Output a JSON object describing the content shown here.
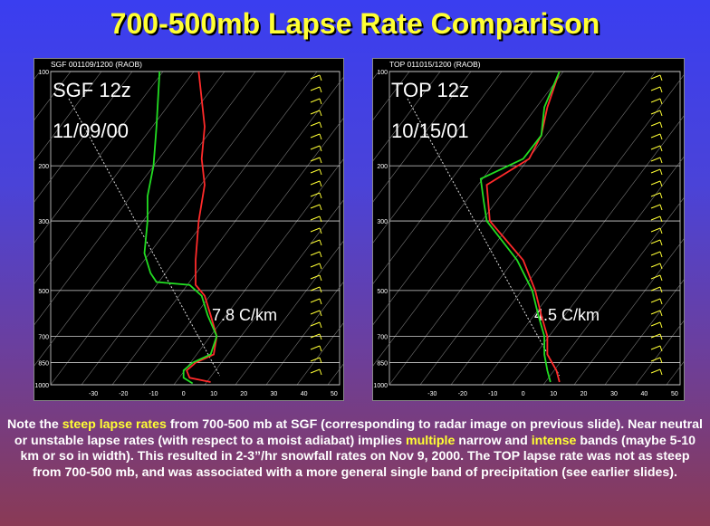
{
  "title": "700-500mb Lapse Rate Comparison",
  "colors": {
    "temperature": "#ff2a2a",
    "dewpoint": "#22dd22",
    "highlight": "#ffff33",
    "isobar": "#cfcfcf",
    "barb": "#ffff33"
  },
  "caption": {
    "p1": "Note the ",
    "h1": "steep lapse rates",
    "p2": " from 700-500 mb at SGF (corresponding to radar image on previous slide). Near neutral or unstable lapse rates (with respect to a moist adiabat) implies ",
    "h2": "multiple",
    "p3": " narrow and ",
    "h3": "intense",
    "p4": " bands (maybe 5-10 km or so in width). This resulted in 2-3”/hr snowfall rates on Nov 9, 2000. The TOP lapse rate was not as steep from 700-500 mb, and was associated with a more general single band of precipitation (see earlier slides)."
  },
  "chart_data": [
    {
      "type": "line",
      "header": "SGF  001109/1200  (RAOB)",
      "station_label": "SGF 12z",
      "date_label": "11/09/00",
      "lapse_label": "7.8 C/km",
      "pressure_ticks": [
        100,
        200,
        300,
        500,
        700,
        850,
        1000
      ],
      "temp_ticks": [
        -30,
        -20,
        -10,
        0,
        10,
        20,
        30,
        40,
        50
      ],
      "series": [
        {
          "key": "temperature",
          "points": [
            [
              100,
              5
            ],
            [
              150,
              7
            ],
            [
              190,
              6
            ],
            [
              230,
              7
            ],
            [
              300,
              5
            ],
            [
              400,
              4
            ],
            [
              480,
              4
            ],
            [
              520,
              7
            ],
            [
              600,
              9
            ],
            [
              700,
              11
            ],
            [
              800,
              10
            ],
            [
              850,
              4
            ],
            [
              900,
              1
            ],
            [
              950,
              2
            ],
            [
              980,
              9
            ]
          ]
        },
        {
          "key": "dewpoint",
          "points": [
            [
              100,
              -8
            ],
            [
              150,
              -9
            ],
            [
              200,
              -10
            ],
            [
              250,
              -12
            ],
            [
              300,
              -12
            ],
            [
              380,
              -13
            ],
            [
              440,
              -11
            ],
            [
              470,
              -9
            ],
            [
              480,
              2
            ],
            [
              520,
              6
            ],
            [
              600,
              8
            ],
            [
              700,
              11
            ],
            [
              800,
              9
            ],
            [
              850,
              3
            ],
            [
              900,
              0
            ],
            [
              950,
              0
            ],
            [
              990,
              3
            ]
          ]
        }
      ]
    },
    {
      "type": "line",
      "header": "TOP  011015/1200  (RAOB)",
      "station_label": "TOP 12z",
      "date_label": "10/15/01",
      "lapse_label": "4.5 C/km",
      "pressure_ticks": [
        100,
        200,
        300,
        500,
        700,
        850,
        1000
      ],
      "temp_ticks": [
        -30,
        -20,
        -10,
        0,
        10,
        20,
        30,
        40,
        50
      ],
      "series": [
        {
          "key": "temperature",
          "points": [
            [
              100,
              12
            ],
            [
              130,
              8
            ],
            [
              160,
              6
            ],
            [
              190,
              2
            ],
            [
              230,
              -12
            ],
            [
              300,
              -11
            ],
            [
              400,
              0
            ],
            [
              500,
              4
            ],
            [
              600,
              6
            ],
            [
              700,
              8
            ],
            [
              800,
              8
            ],
            [
              900,
              11
            ],
            [
              980,
              12
            ]
          ]
        },
        {
          "key": "dewpoint",
          "points": [
            [
              100,
              12
            ],
            [
              130,
              7
            ],
            [
              160,
              6
            ],
            [
              190,
              0
            ],
            [
              220,
              -14
            ],
            [
              260,
              -13
            ],
            [
              300,
              -12
            ],
            [
              400,
              -2
            ],
            [
              500,
              3
            ],
            [
              600,
              5
            ],
            [
              700,
              7
            ],
            [
              800,
              7
            ],
            [
              900,
              8
            ],
            [
              980,
              9
            ]
          ]
        }
      ]
    }
  ]
}
